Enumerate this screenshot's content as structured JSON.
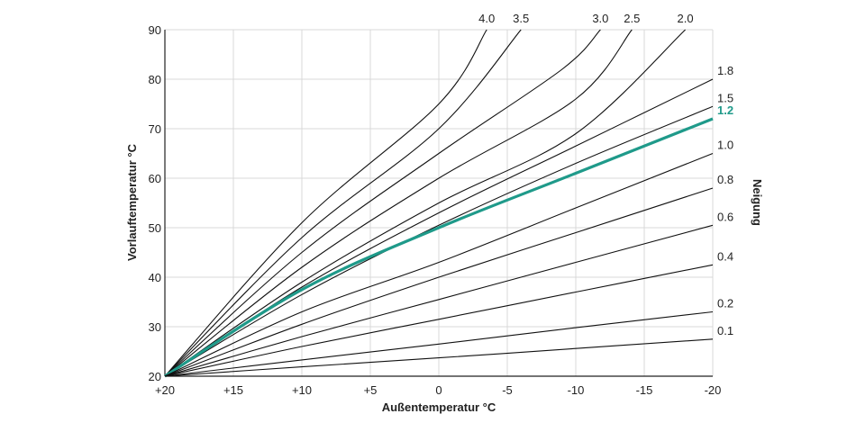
{
  "chart_data": {
    "type": "line",
    "xlabel": "Außentemperatur °C",
    "ylabel": "Vorlauftemperatur °C",
    "legend_title": "Neigung",
    "x_ticks": [
      "+20",
      "+15",
      "+10",
      "+5",
      "0",
      "-5",
      "-10",
      "-15",
      "-20"
    ],
    "y_ticks": [
      "20",
      "30",
      "40",
      "50",
      "60",
      "70",
      "80",
      "90"
    ],
    "xlim": [
      20,
      -20
    ],
    "ylim": [
      20,
      90
    ],
    "grid": true,
    "highlight_color": "#1f9a8a",
    "series": [
      {
        "name": "4.0",
        "points": [
          [
            20,
            20
          ],
          [
            10,
            51
          ],
          [
            0,
            75
          ],
          [
            -3.5,
            90
          ]
        ]
      },
      {
        "name": "3.5",
        "points": [
          [
            20,
            20
          ],
          [
            10,
            48
          ],
          [
            0,
            70
          ],
          [
            -6,
            90
          ]
        ]
      },
      {
        "name": "3.0",
        "points": [
          [
            20,
            20
          ],
          [
            10,
            45
          ],
          [
            0,
            65
          ],
          [
            -9,
            82
          ],
          [
            -11.8,
            90
          ]
        ]
      },
      {
        "name": "2.5",
        "points": [
          [
            20,
            20
          ],
          [
            10,
            42
          ],
          [
            0,
            60
          ],
          [
            -10,
            76
          ],
          [
            -14.1,
            90
          ]
        ]
      },
      {
        "name": "2.0",
        "points": [
          [
            20,
            20
          ],
          [
            10,
            39
          ],
          [
            0,
            55
          ],
          [
            -10,
            69
          ],
          [
            -18,
            90
          ]
        ]
      },
      {
        "name": "1.8",
        "points": [
          [
            20,
            20
          ],
          [
            10,
            38
          ],
          [
            0,
            53
          ],
          [
            -10,
            66.5
          ],
          [
            -20,
            80
          ]
        ]
      },
      {
        "name": "1.5",
        "points": [
          [
            20,
            20
          ],
          [
            10,
            36.5
          ],
          [
            0,
            50.5
          ],
          [
            -10,
            63
          ],
          [
            -20,
            74.5
          ]
        ]
      },
      {
        "name": "1.2",
        "highlight": true,
        "points": [
          [
            20,
            20
          ],
          [
            10,
            37.5
          ],
          [
            0,
            50
          ],
          [
            -10,
            61
          ],
          [
            -20,
            72
          ]
        ]
      },
      {
        "name": "1.0",
        "points": [
          [
            20,
            20
          ],
          [
            10,
            33
          ],
          [
            0,
            43
          ],
          [
            -10,
            54
          ],
          [
            -20,
            65
          ]
        ]
      },
      {
        "name": "0.8",
        "points": [
          [
            20,
            20
          ],
          [
            10,
            30.5
          ],
          [
            0,
            40
          ],
          [
            -10,
            49
          ],
          [
            -20,
            58
          ]
        ]
      },
      {
        "name": "0.6",
        "points": [
          [
            20,
            20
          ],
          [
            10,
            28
          ],
          [
            0,
            35.5
          ],
          [
            -10,
            43
          ],
          [
            -20,
            50.5
          ]
        ]
      },
      {
        "name": "0.4",
        "points": [
          [
            20,
            20
          ],
          [
            10,
            26
          ],
          [
            0,
            31.5
          ],
          [
            -10,
            37
          ],
          [
            -20,
            42.5
          ]
        ]
      },
      {
        "name": "0.2",
        "points": [
          [
            20,
            20
          ],
          [
            10,
            23.3
          ],
          [
            0,
            26.5
          ],
          [
            -10,
            29.8
          ],
          [
            -20,
            33
          ]
        ]
      },
      {
        "name": "0.1",
        "points": [
          [
            20,
            20
          ],
          [
            10,
            21.9
          ],
          [
            0,
            23.7
          ],
          [
            -10,
            25.6
          ],
          [
            -20,
            27.5
          ]
        ]
      }
    ]
  }
}
